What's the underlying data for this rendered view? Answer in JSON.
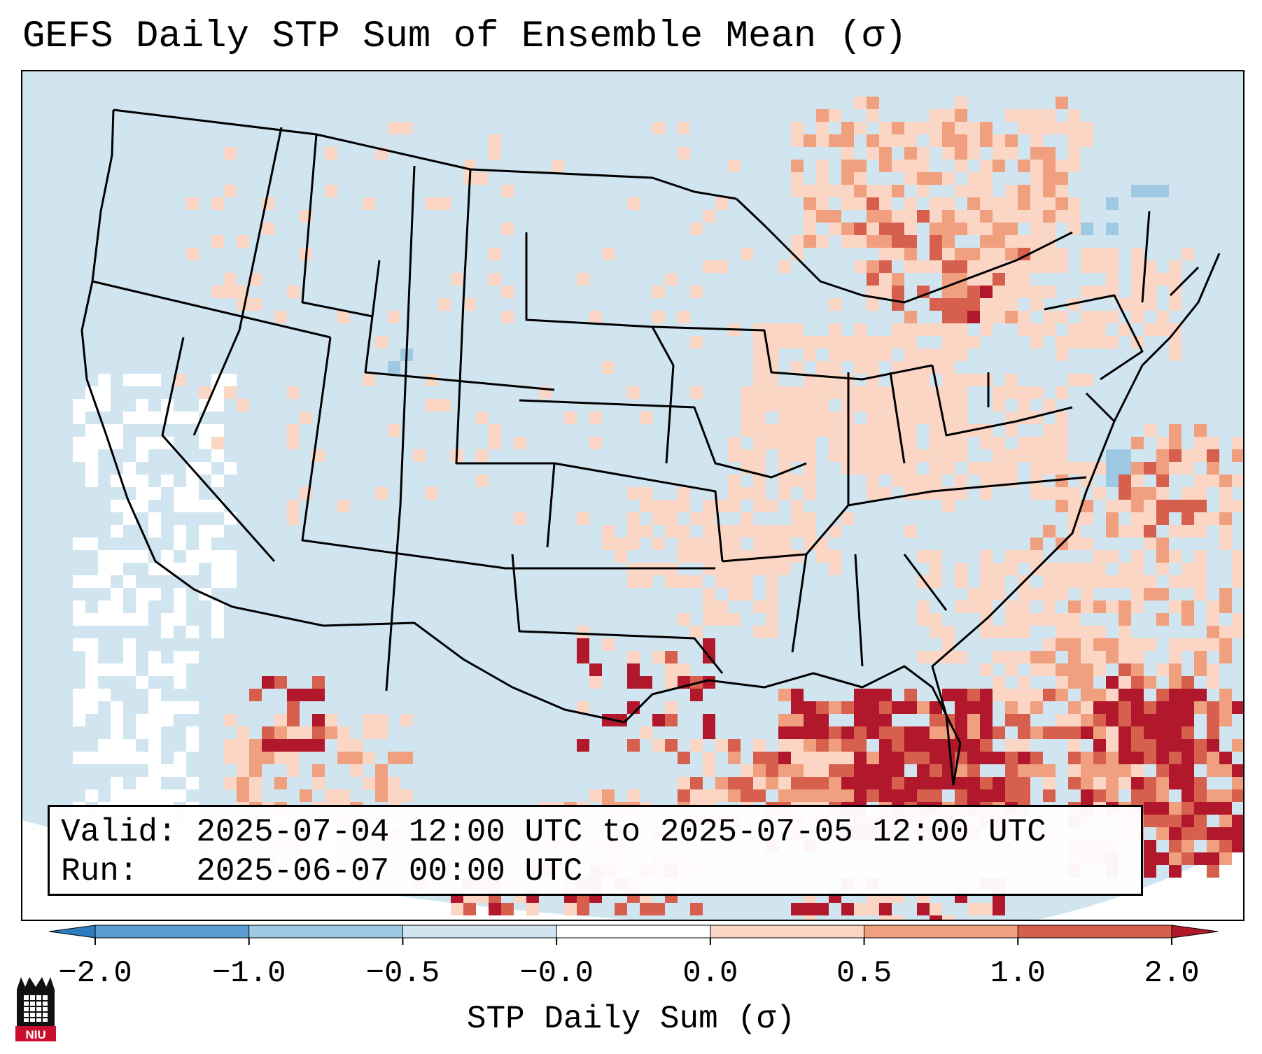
{
  "title": "GEFS Daily STP Sum of Ensemble Mean (σ)",
  "info": {
    "valid_line": "Valid: 2025-07-04 12:00 UTC to 2025-07-05 12:00 UTC",
    "run_line": "Run:   2025-06-07 00:00 UTC"
  },
  "colorbar": {
    "label": "STP Daily Sum (σ)",
    "ticks": [
      "−2.0",
      "−1.0",
      "−0.5",
      "−0.0",
      "0.0",
      "0.5",
      "1.0",
      "2.0"
    ],
    "bins": [
      {
        "color": "#2f7bbf"
      },
      {
        "color": "#5a9fd0"
      },
      {
        "color": "#9fc9e3"
      },
      {
        "color": "#d1e5f0"
      },
      {
        "color": "#ffffff"
      },
      {
        "color": "#fbd6c4"
      },
      {
        "color": "#f0a07e"
      },
      {
        "color": "#d6604d"
      },
      {
        "color": "#b2182b"
      }
    ]
  },
  "logo": {
    "text": "NIU"
  },
  "colors": {
    "ocean": "#d1e5f0",
    "land_neutral": "#d1e5f0",
    "white_bin": "#ffffff",
    "light_red": "#fbd6c4",
    "mid_red": "#f0a07e",
    "strong_red": "#d6604d",
    "dark_red": "#b2182b",
    "light_blue": "#9fc9e3"
  }
}
